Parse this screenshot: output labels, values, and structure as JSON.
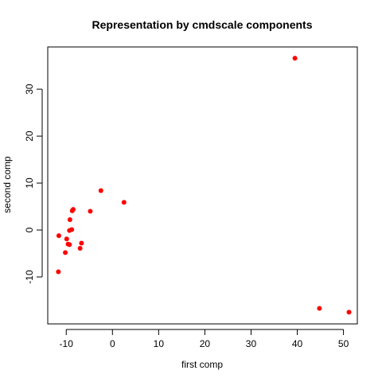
{
  "chart_data": {
    "type": "scatter",
    "title": "Representation by cmdscale components",
    "xlabel": "first comp",
    "ylabel": "second comp",
    "xlim": [
      -14,
      53
    ],
    "ylim": [
      -20,
      39
    ],
    "xticks": [
      -10,
      0,
      10,
      20,
      30,
      40,
      50
    ],
    "yticks": [
      -10,
      0,
      10,
      20,
      30
    ],
    "grid": false,
    "point_color": "#ff0000",
    "points": [
      {
        "x": 39.5,
        "y": 36.6
      },
      {
        "x": 44.8,
        "y": -16.7
      },
      {
        "x": 51.2,
        "y": -17.5
      },
      {
        "x": 2.5,
        "y": 5.9
      },
      {
        "x": -2.5,
        "y": 8.4
      },
      {
        "x": -4.8,
        "y": 4.0
      },
      {
        "x": -8.5,
        "y": 4.4
      },
      {
        "x": -8.7,
        "y": 4.1
      },
      {
        "x": -9.2,
        "y": 2.2
      },
      {
        "x": -8.8,
        "y": 0.1
      },
      {
        "x": -9.3,
        "y": -0.1
      },
      {
        "x": -11.6,
        "y": -1.2
      },
      {
        "x": -9.9,
        "y": -1.9
      },
      {
        "x": -9.6,
        "y": -3.0
      },
      {
        "x": -9.3,
        "y": -3.1
      },
      {
        "x": -6.7,
        "y": -2.8
      },
      {
        "x": -7.0,
        "y": -3.9
      },
      {
        "x": -10.2,
        "y": -4.8
      },
      {
        "x": -11.7,
        "y": -8.9
      }
    ]
  }
}
